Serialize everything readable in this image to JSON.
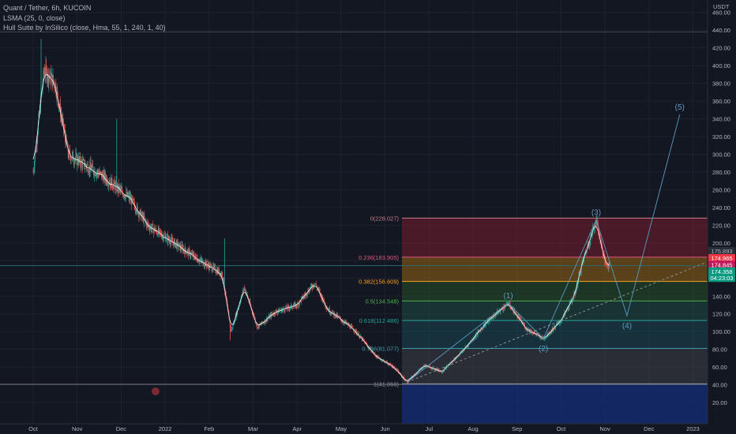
{
  "header": {
    "symbol_line": "Quant / Tether, 6h, KUCOIN",
    "indicator_1": "LSMA (25, 0, close)",
    "indicator_2": "Hull Suite by InSilico (close, Hma, 55, 1, 240, 1, 40)"
  },
  "colors": {
    "background": "#131722",
    "grid": "#1e222d",
    "up_candle": "#26a69a",
    "down_candle": "#ef5350",
    "lsma": "#ffffff",
    "wave": "#5b9cc0",
    "text": "#b2b5be"
  },
  "chart_data": {
    "type": "candlestick",
    "y_axis_unit": "USDT",
    "ylim": [
      10,
      460
    ],
    "y_ticks": [
      "460.00",
      "440.00",
      "420.00",
      "400.00",
      "380.00",
      "360.00",
      "340.00",
      "320.00",
      "300.00",
      "280.00",
      "260.00",
      "240.00",
      "220.00",
      "200.00",
      "180.00",
      "160.00",
      "140.00",
      "120.00",
      "100.00",
      "80.00",
      "60.00",
      "40.00",
      "20.00"
    ],
    "x_ticks": [
      "Oct",
      "Nov",
      "Dec",
      "2022",
      "Feb",
      "Mar",
      "Apr",
      "May",
      "Jun",
      "Jul",
      "Aug",
      "Sep",
      "Oct",
      "Nov",
      "Dec",
      "2023"
    ],
    "price_path": [
      {
        "t": 0.0,
        "p": 280
      },
      {
        "t": 0.25,
        "p": 395
      },
      {
        "t": 0.5,
        "p": 380
      },
      {
        "t": 0.8,
        "p": 300
      },
      {
        "t": 1.6,
        "p": 275
      },
      {
        "t": 2.2,
        "p": 250
      },
      {
        "t": 2.6,
        "p": 220
      },
      {
        "t": 3.2,
        "p": 200
      },
      {
        "t": 3.8,
        "p": 180
      },
      {
        "t": 4.3,
        "p": 165
      },
      {
        "t": 4.5,
        "p": 100
      },
      {
        "t": 4.8,
        "p": 150
      },
      {
        "t": 5.1,
        "p": 105
      },
      {
        "t": 5.5,
        "p": 122
      },
      {
        "t": 6.0,
        "p": 130
      },
      {
        "t": 6.4,
        "p": 155
      },
      {
        "t": 6.7,
        "p": 125
      },
      {
        "t": 7.3,
        "p": 102
      },
      {
        "t": 7.8,
        "p": 72
      },
      {
        "t": 8.2,
        "p": 60
      },
      {
        "t": 8.5,
        "p": 43
      },
      {
        "t": 8.9,
        "p": 62
      },
      {
        "t": 9.3,
        "p": 55
      },
      {
        "t": 9.8,
        "p": 80
      },
      {
        "t": 10.3,
        "p": 110
      },
      {
        "t": 10.8,
        "p": 132
      },
      {
        "t": 11.2,
        "p": 104
      },
      {
        "t": 11.6,
        "p": 92
      },
      {
        "t": 12.0,
        "p": 112
      },
      {
        "t": 12.3,
        "p": 140
      },
      {
        "t": 12.5,
        "p": 180
      },
      {
        "t": 12.8,
        "p": 226
      },
      {
        "t": 13.0,
        "p": 178
      },
      {
        "t": 13.1,
        "p": 174
      }
    ],
    "fibonacci": {
      "levels": [
        {
          "ratio_label": "0(228.027)",
          "price": 228.027,
          "color": "#c77b8a"
        },
        {
          "ratio_label": "0.236(183.905)",
          "price": 183.905,
          "color": "#e0577f"
        },
        {
          "ratio_label": "0.382(156.609)",
          "price": 156.609,
          "color": "#f7a21b"
        },
        {
          "ratio_label": "0.5(134.548)",
          "price": 134.548,
          "color": "#4caf50"
        },
        {
          "ratio_label": "0.618(112.486)",
          "price": 112.486,
          "color": "#26a69a"
        },
        {
          "ratio_label": "0.786(81.077)",
          "price": 81.077,
          "color": "#3a9ba8"
        },
        {
          "ratio_label": "1(41.068)",
          "price": 41.068,
          "color": "#9598a1"
        }
      ],
      "zone_fills": [
        "rgba(120,30,45,0.55)",
        "rgba(150,100,20,0.55)",
        "rgba(40,90,40,0.45)",
        "rgba(30,80,65,0.5)",
        "rgba(25,75,85,0.5)",
        "rgba(70,72,80,0.45)",
        "rgba(20,45,120,0.75)"
      ]
    },
    "elliott_waves": [
      {
        "label": "(1)",
        "t": 10.8,
        "p": 132
      },
      {
        "label": "(2)",
        "t": 11.6,
        "p": 92
      },
      {
        "label": "(3)",
        "t": 12.8,
        "p": 226
      },
      {
        "label": "(4)",
        "t": 13.5,
        "p": 118
      },
      {
        "label": "(5)",
        "t": 14.7,
        "p": 345
      }
    ],
    "wave_start": {
      "t": 8.5,
      "p": 43
    },
    "trendline": [
      {
        "t": 8.5,
        "p": 43
      },
      {
        "t": 15.3,
        "p": 178
      }
    ],
    "price_labels": [
      {
        "text": "175.893",
        "price": 191,
        "bg": "#2a2e39",
        "fg": "#b2b5be"
      },
      {
        "text": "174.965",
        "price": 183,
        "bg": "#f23645",
        "fg": "#ffffff"
      },
      {
        "text": "174.845",
        "price": 175.5,
        "bg": "#c2185b",
        "fg": "#ffffff"
      },
      {
        "text": "174.358",
        "price": 168,
        "bg": "#089981",
        "fg": "#ffffff"
      },
      {
        "text": "04:23:03",
        "price": 160.5,
        "bg": "#089981",
        "fg": "#ffffff"
      }
    ],
    "horizontal_lines": [
      {
        "price": 438,
        "color": "#434651"
      },
      {
        "price": 40.5,
        "color": "#787b86"
      },
      {
        "price": 174.358,
        "color": "#2a6a6a"
      }
    ]
  }
}
